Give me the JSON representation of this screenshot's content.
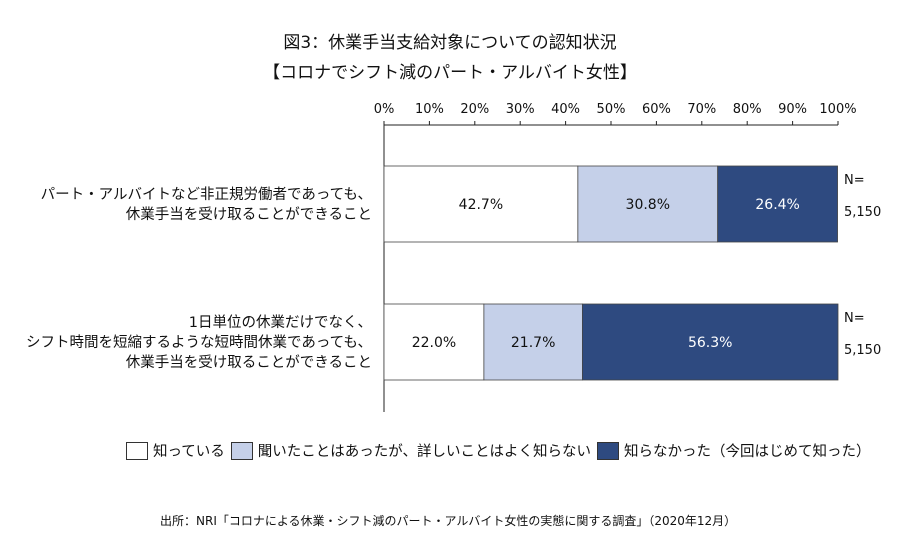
{
  "title_line1": "図3：休業手当支給対象についての認知状況",
  "title_line2": "【コロナでシフト減のパート・アルバイト女性】",
  "source": "出所：NRI「コロナによる休業・シフト減のパート・アルバイト女性の実態に関する調査」（2020年12月）",
  "colors": {
    "known": "#ffffff",
    "heard": "#c5d0e9",
    "unknown": "#2e4a80"
  },
  "chart_data": {
    "type": "bar",
    "orientation": "horizontal-stacked-100",
    "x_ticks": [
      "0%",
      "10%",
      "20%",
      "30%",
      "40%",
      "50%",
      "60%",
      "70%",
      "80%",
      "90%",
      "100%"
    ],
    "xlim": [
      0,
      100
    ],
    "categories": [
      [
        "パート・アルバイトなど非正規労働者であっても、",
        "休業手当を受け取ることができること"
      ],
      [
        "1日単位の休業だけでなく、",
        "シフト時間を短縮するような短時間休業であっても、",
        "休業手当を受け取ることができること"
      ]
    ],
    "series": [
      {
        "name": "知っている",
        "values": [
          42.7,
          22.0
        ],
        "labels": [
          "42.7%",
          "22.0%"
        ]
      },
      {
        "name": "聞いたことはあったが、詳しいことはよく知らない",
        "values": [
          30.8,
          21.7
        ],
        "labels": [
          "30.8%",
          "21.7%"
        ]
      },
      {
        "name": "知らなかった（今回はじめて知った）",
        "values": [
          26.4,
          56.3
        ],
        "labels": [
          "26.4%",
          "56.3%"
        ]
      }
    ],
    "n_labels": [
      [
        "N=",
        "5,150"
      ],
      [
        "N=",
        "5,150"
      ]
    ]
  }
}
